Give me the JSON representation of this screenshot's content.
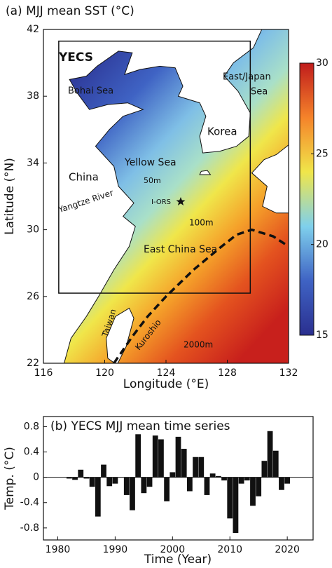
{
  "chart_data": [
    {
      "type": "map",
      "title": "(a) MJJ mean SST (°C)",
      "xlabel": "Longitude (°E)",
      "ylabel": "Latitude (°N)",
      "xlim": [
        116,
        132
      ],
      "xticks": [
        116,
        120,
        124,
        128,
        132
      ],
      "ylim": [
        22,
        42
      ],
      "yticks": [
        22,
        26,
        30,
        34,
        38,
        42
      ],
      "colorbar_lim": [
        15,
        30
      ],
      "colorbar_ticks": [
        15,
        20,
        25,
        30
      ],
      "annotations": [
        "YECS",
        "Bohai Sea",
        "East/Japan",
        "Sea",
        "Korea",
        "China",
        "Yellow Sea",
        "50m",
        "I-ORS",
        "Yangtze River",
        "100m",
        "East China Sea",
        "Taiwan",
        "Kuroshio",
        "2000m"
      ]
    },
    {
      "type": "bar",
      "title": "(b) YECS MJJ mean time series",
      "xlabel": "Time (Year)",
      "ylabel": "Temp. (°C)",
      "x": [
        1982,
        1983,
        1984,
        1985,
        1986,
        1987,
        1988,
        1989,
        1990,
        1991,
        1992,
        1993,
        1994,
        1995,
        1996,
        1997,
        1998,
        1999,
        2000,
        2001,
        2002,
        2003,
        2004,
        2005,
        2006,
        2007,
        2008,
        2009,
        2010,
        2011,
        2012,
        2013,
        2014,
        2015,
        2016,
        2017,
        2018,
        2019,
        2020
      ],
      "values": [
        -0.02,
        -0.04,
        0.12,
        -0.02,
        -0.15,
        -0.62,
        0.2,
        -0.14,
        -0.1,
        0.0,
        -0.28,
        -0.52,
        0.68,
        -0.25,
        -0.15,
        0.66,
        0.6,
        -0.38,
        0.08,
        0.64,
        0.45,
        -0.22,
        0.32,
        0.32,
        -0.28,
        0.06,
        0.02,
        -0.05,
        -0.65,
        -0.88,
        -0.1,
        -0.05,
        -0.45,
        -0.3,
        0.26,
        0.73,
        0.42,
        -0.2,
        -0.1
      ],
      "color": "#111111",
      "xlim": [
        1977.5,
        2024.5
      ],
      "xticks": [
        1980,
        1990,
        2000,
        2010,
        2020
      ],
      "ylim": [
        -0.99,
        0.96
      ],
      "yticks": [
        -0.8,
        -0.4,
        0,
        0.4,
        0.8
      ]
    }
  ]
}
